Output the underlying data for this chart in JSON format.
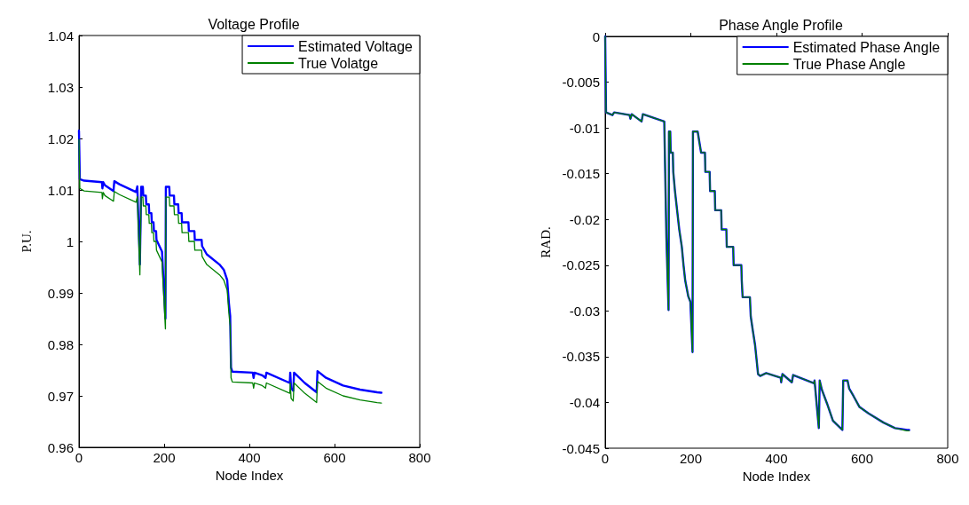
{
  "chart_data": [
    {
      "type": "line",
      "title": "Voltage Profile",
      "xlabel": "Node Index",
      "ylabel": "P.U.",
      "xlim": [
        0,
        800
      ],
      "xticks": [
        0,
        200,
        400,
        600,
        800
      ],
      "ylim": [
        0.96,
        1.04
      ],
      "yticks": [
        0.96,
        0.97,
        0.98,
        0.99,
        {
          "value": 1,
          "label": "1"
        },
        1.01,
        1.02,
        1.03,
        1.04
      ],
      "grid": false,
      "legend": "top right",
      "marker": "none",
      "line_style": "solid",
      "series": [
        {
          "name": "Estimated Voltage",
          "color": "#0000ff",
          "x": [
            0,
            2,
            12,
            54,
            55,
            57,
            61,
            81,
            83,
            95,
            134,
            137,
            143,
            146,
            150,
            151,
            157,
            158,
            164,
            165,
            170,
            171,
            175,
            176,
            181,
            182,
            195,
            203,
            204,
            212,
            213,
            223,
            224,
            233,
            234,
            241,
            242,
            257,
            258,
            271,
            272,
            288,
            289,
            300,
            330,
            340,
            348,
            352,
            355,
            357,
            360,
            408,
            410,
            412,
            430,
            438,
            440,
            495,
            496,
            498,
            503,
            505,
            530,
            558,
            560,
            580,
            620,
            660,
            700,
            710
          ],
          "values": [
            1.0215,
            1.0121,
            1.0118,
            1.0115,
            1.0103,
            1.0115,
            1.0109,
            1.0098,
            1.0117,
            1.0111,
            1.0096,
            1.0107,
            0.9955,
            1.0106,
            1.0106,
            1.0089,
            1.0089,
            1.0072,
            1.0072,
            1.0055,
            1.0055,
            1.0037,
            1.0037,
            1.002,
            1.002,
            1.0003,
            0.998,
            0.985,
            1.0106,
            1.0106,
            1.0089,
            1.0089,
            1.0072,
            1.0072,
            1.0055,
            1.0055,
            1.0037,
            1.0037,
            1.002,
            1.002,
            1.0003,
            1.0003,
            0.9991,
            0.9975,
            0.9955,
            0.9945,
            0.9925,
            0.988,
            0.9855,
            0.9755,
            0.9747,
            0.9745,
            0.9735,
            0.9745,
            0.974,
            0.9735,
            0.9745,
            0.9725,
            0.9745,
            0.9715,
            0.971,
            0.9745,
            0.9725,
            0.9707,
            0.9748,
            0.9735,
            0.972,
            0.9712,
            0.9707,
            0.9706
          ]
        },
        {
          "name": "True Volatge",
          "color": "#008000",
          "x": [
            0,
            2,
            12,
            54,
            55,
            57,
            61,
            81,
            83,
            95,
            134,
            137,
            143,
            146,
            150,
            151,
            157,
            158,
            164,
            165,
            170,
            171,
            175,
            176,
            181,
            182,
            195,
            203,
            204,
            212,
            213,
            223,
            224,
            233,
            234,
            241,
            242,
            257,
            258,
            271,
            272,
            288,
            289,
            300,
            330,
            340,
            348,
            352,
            355,
            357,
            360,
            408,
            410,
            412,
            430,
            438,
            440,
            495,
            496,
            498,
            503,
            505,
            530,
            558,
            560,
            580,
            620,
            660,
            700,
            710
          ],
          "values": [
            1.0198,
            1.0103,
            1.0098,
            1.0095,
            1.0083,
            1.0095,
            1.0089,
            1.0078,
            1.0097,
            1.0091,
            1.0076,
            1.0087,
            0.9935,
            1.0086,
            1.0086,
            1.0069,
            1.0069,
            1.0052,
            1.0052,
            1.0035,
            1.0035,
            1.0017,
            1.0017,
            1.0,
            1.0,
            0.9983,
            0.996,
            0.983,
            1.0086,
            1.0086,
            1.0069,
            1.0069,
            1.0052,
            1.0052,
            1.0035,
            1.0035,
            1.0017,
            1.0017,
            1.0,
            1.0,
            0.9983,
            0.9983,
            0.9971,
            0.9955,
            0.9935,
            0.9925,
            0.9905,
            0.986,
            0.9835,
            0.9735,
            0.9727,
            0.9725,
            0.9715,
            0.9725,
            0.972,
            0.9715,
            0.9725,
            0.9705,
            0.9725,
            0.9695,
            0.969,
            0.9725,
            0.9705,
            0.9687,
            0.9728,
            0.9715,
            0.97,
            0.9692,
            0.9687,
            0.9686
          ]
        }
      ]
    },
    {
      "type": "line",
      "title": "Phase Angle Profile",
      "xlabel": "Node Index",
      "ylabel": "RAD.",
      "xlim": [
        0,
        800
      ],
      "xticks": [
        0,
        200,
        400,
        600,
        800
      ],
      "ylim": [
        -0.045,
        0
      ],
      "yticks": [
        -0.045,
        -0.04,
        -0.035,
        -0.03,
        -0.025,
        -0.02,
        -0.015,
        -0.01,
        -0.005,
        0
      ],
      "grid": false,
      "legend": "top right",
      "marker": "none",
      "line_style": "solid",
      "series": [
        {
          "name": "Estimated Phase Angle",
          "color": "#0000ff",
          "x": [
            0,
            2,
            17,
            21,
            57,
            59,
            62,
            85,
            88,
            138,
            143,
            148,
            149,
            152,
            153,
            158,
            159,
            163,
            168,
            173,
            179,
            183,
            187,
            194,
            199,
            204,
            205,
            216,
            224,
            233,
            234,
            244,
            245,
            256,
            257,
            271,
            272,
            283,
            284,
            299,
            300,
            318,
            319,
            321,
            338,
            340,
            345,
            350,
            354,
            357,
            362,
            376,
            410,
            411,
            414,
            436,
            439,
            488,
            489,
            499,
            501,
            506,
            518,
            532,
            554,
            556,
            566,
            570,
            580,
            594,
            615,
            650,
            677,
            705,
            710
          ],
          "values": [
            0,
            -0.0083,
            -0.0086,
            -0.0083,
            -0.0086,
            -0.009,
            -0.0085,
            -0.0093,
            -0.0085,
            -0.0093,
            -0.022,
            -0.0299,
            -0.0104,
            -0.0104,
            -0.0127,
            -0.0127,
            -0.0148,
            -0.0169,
            -0.019,
            -0.0211,
            -0.023,
            -0.025,
            -0.0267,
            -0.0284,
            -0.029,
            -0.0345,
            -0.0104,
            -0.0104,
            -0.0127,
            -0.0127,
            -0.0148,
            -0.0148,
            -0.0169,
            -0.0169,
            -0.019,
            -0.019,
            -0.0211,
            -0.0211,
            -0.023,
            -0.023,
            -0.025,
            -0.025,
            -0.0267,
            -0.0285,
            -0.0285,
            -0.0306,
            -0.0322,
            -0.0337,
            -0.0355,
            -0.0369,
            -0.0371,
            -0.0368,
            -0.0373,
            -0.0378,
            -0.0369,
            -0.0378,
            -0.037,
            -0.0379,
            -0.0376,
            -0.0428,
            -0.0376,
            -0.0386,
            -0.0401,
            -0.042,
            -0.043,
            -0.0376,
            -0.0376,
            -0.0385,
            -0.0393,
            -0.0405,
            -0.0412,
            -0.0422,
            -0.0428,
            -0.043,
            -0.043
          ]
        },
        {
          "name": "True Phase Angle",
          "color": "#008000",
          "x": [
            0,
            2,
            17,
            21,
            57,
            59,
            62,
            85,
            88,
            138,
            143,
            148,
            149,
            152,
            153,
            158,
            159,
            163,
            168,
            173,
            179,
            183,
            187,
            194,
            199,
            204,
            205,
            216,
            224,
            233,
            234,
            244,
            245,
            256,
            257,
            271,
            272,
            283,
            284,
            299,
            300,
            318,
            319,
            321,
            338,
            340,
            345,
            350,
            354,
            357,
            362,
            376,
            410,
            411,
            414,
            436,
            439,
            488,
            489,
            499,
            501,
            506,
            518,
            532,
            554,
            556,
            566,
            570,
            580,
            594,
            615,
            650,
            677,
            705,
            710
          ],
          "values": [
            0,
            -0.0083,
            -0.0086,
            -0.0083,
            -0.0086,
            -0.009,
            -0.0085,
            -0.0093,
            -0.0085,
            -0.0093,
            -0.0222,
            -0.0299,
            -0.0104,
            -0.0104,
            -0.0127,
            -0.0127,
            -0.0148,
            -0.0169,
            -0.019,
            -0.0211,
            -0.023,
            -0.025,
            -0.0267,
            -0.0284,
            -0.029,
            -0.0345,
            -0.0104,
            -0.0104,
            -0.0127,
            -0.0127,
            -0.0148,
            -0.0148,
            -0.0169,
            -0.0169,
            -0.019,
            -0.019,
            -0.0211,
            -0.0211,
            -0.023,
            -0.023,
            -0.025,
            -0.025,
            -0.0267,
            -0.0285,
            -0.0285,
            -0.0306,
            -0.0322,
            -0.0337,
            -0.0355,
            -0.0369,
            -0.0371,
            -0.0368,
            -0.0373,
            -0.0378,
            -0.0369,
            -0.0378,
            -0.037,
            -0.0379,
            -0.0376,
            -0.0428,
            -0.0376,
            -0.0386,
            -0.0401,
            -0.042,
            -0.043,
            -0.0376,
            -0.0376,
            -0.0385,
            -0.0393,
            -0.0405,
            -0.0412,
            -0.0422,
            -0.0428,
            -0.0431,
            -0.0431
          ]
        }
      ]
    }
  ]
}
